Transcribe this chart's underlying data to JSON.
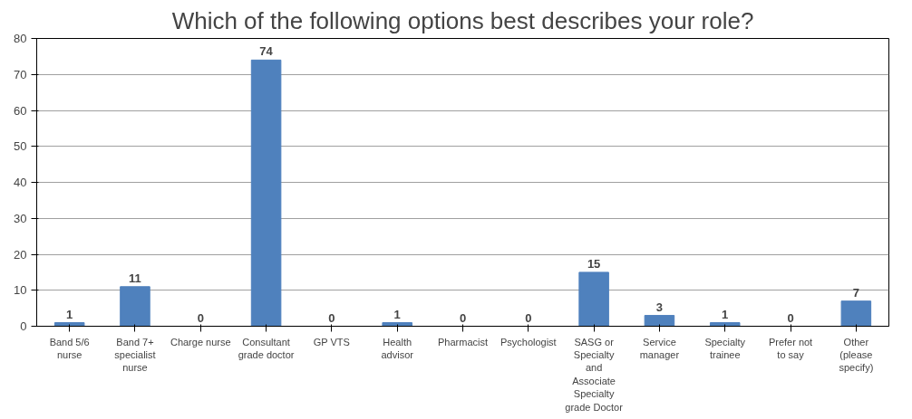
{
  "chart_data": {
    "type": "bar",
    "title": "Which of the following options best describes your role?",
    "categories": [
      "Band 5/6 nurse",
      "Band 7+ specialist nurse",
      "Charge nurse",
      "Consultant grade doctor",
      "GP VTS",
      "Health advisor",
      "Pharmacist",
      "Psychologist",
      "SASG or Specialty and Associate Specialty grade Doctor",
      "Service manager",
      "Specialty trainee",
      "Prefer not to say",
      "Other (please specify)"
    ],
    "values": [
      1,
      11,
      0,
      74,
      0,
      1,
      0,
      0,
      15,
      3,
      1,
      0,
      7
    ],
    "color": "#4f81bd",
    "ylim": [
      0,
      80
    ],
    "yticks": [
      0,
      10,
      20,
      30,
      40,
      50,
      60,
      70,
      80
    ],
    "grid": "y",
    "data_labels": true
  }
}
